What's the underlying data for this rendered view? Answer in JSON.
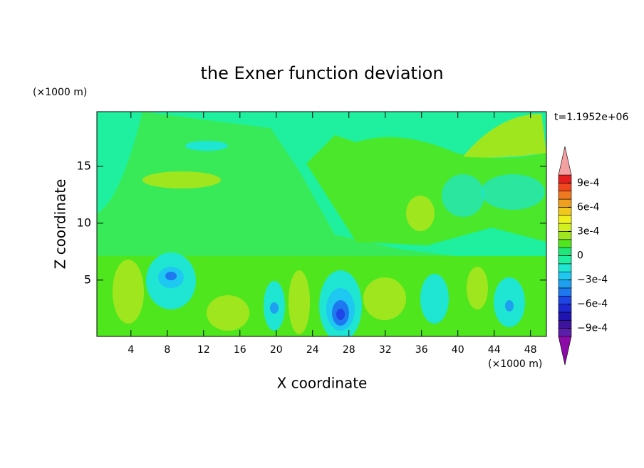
{
  "chart_data": {
    "type": "contour",
    "title": "the Exner function deviation",
    "x_label": "X coordinate",
    "y_label": "Z coordinate",
    "x_unit": "(×1000 m)",
    "y_unit": "(×1000 m)",
    "time_label": "t=1.1952e+06",
    "xlim": [
      0.25,
      49.75
    ],
    "xticks": [
      4,
      8,
      12,
      16,
      20,
      24,
      28,
      32,
      36,
      40,
      44,
      48
    ],
    "ylim": [
      0.05,
      19.8
    ],
    "yticks": [
      5,
      10,
      15
    ],
    "colorbar": {
      "clim": [
        -0.001,
        0.001
      ],
      "ticks": [
        {
          "value": 0.0009,
          "label": "9e-4"
        },
        {
          "value": 0.0006,
          "label": "6e-4"
        },
        {
          "value": 0.0003,
          "label": "3e-4"
        },
        0,
        {
          "value": -0.0003,
          "label": "−3e-4"
        },
        {
          "value": -0.0006,
          "label": "−6e-4"
        },
        {
          "value": -0.0009,
          "label": "−9e-4"
        }
      ],
      "under_color": "#8c0aa5",
      "over_color": "#f5a0a0",
      "colors": [
        "#5a1eaa",
        "#3c14a0",
        "#1e14b4",
        "#1e28d2",
        "#1e46e6",
        "#1e78f0",
        "#1ea0f0",
        "#1ec8f0",
        "#1ee6d2",
        "#1ef0a0",
        "#1ee678",
        "#50e61e",
        "#a0e61e",
        "#d2f01e",
        "#f0f01e",
        "#f0c81e",
        "#f0a01e",
        "#f0781e",
        "#f0461e",
        "#e61e1e"
      ]
    }
  }
}
